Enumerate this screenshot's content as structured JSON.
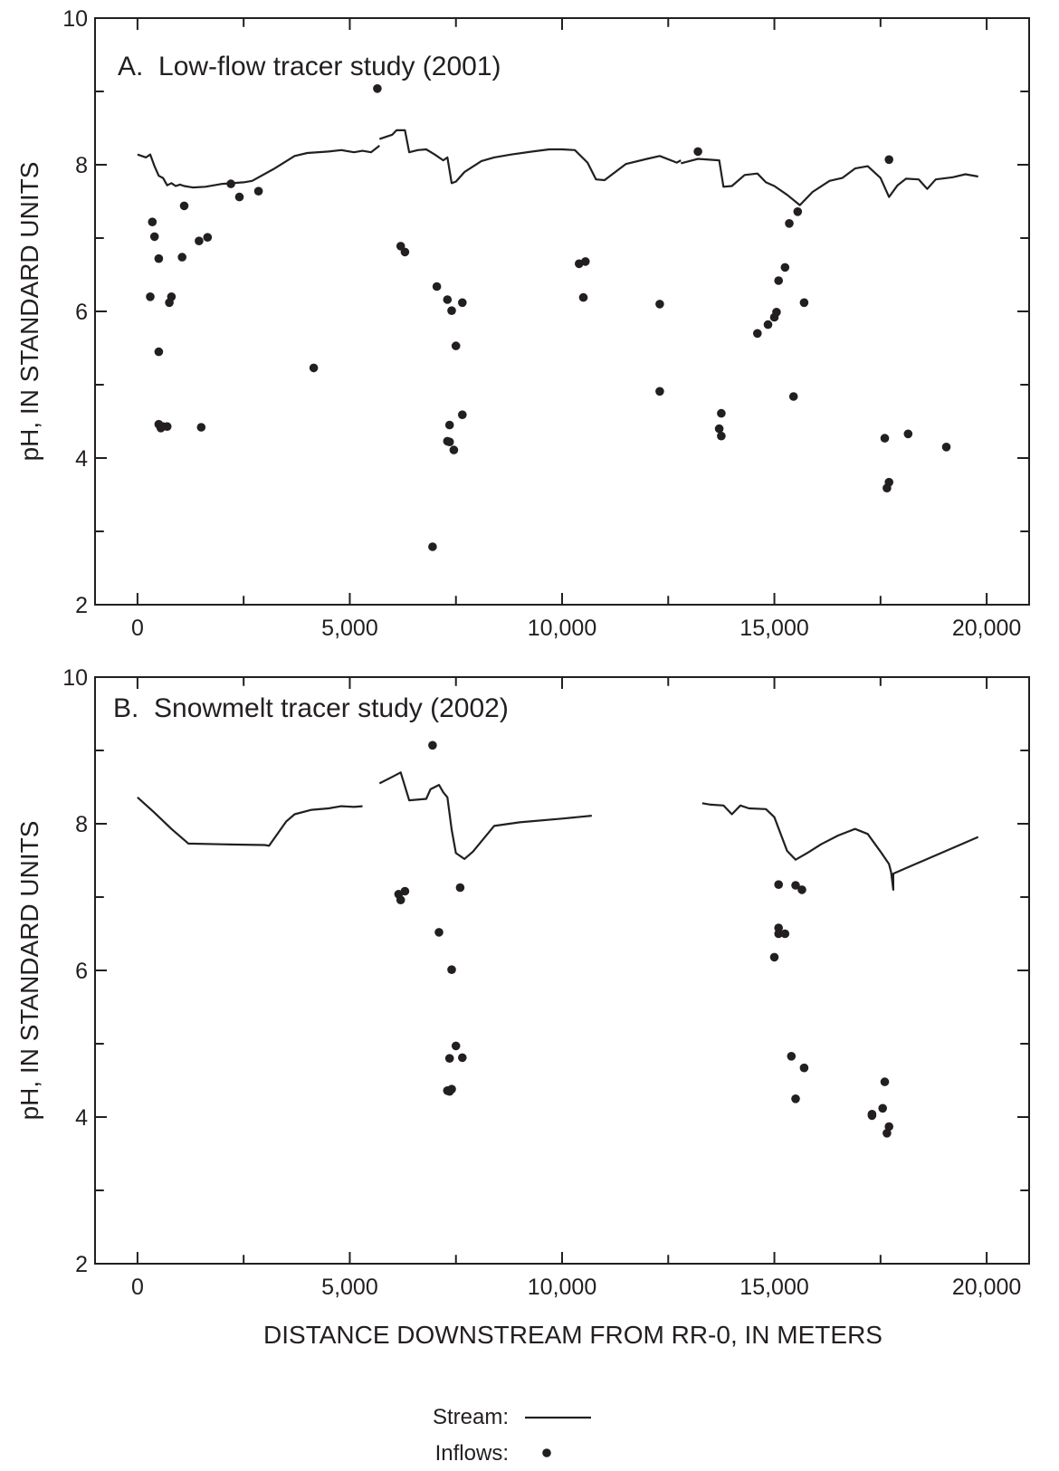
{
  "figure": {
    "xlabel": "DISTANCE DOWNSTREAM FROM RR-0, IN METERS",
    "legend": {
      "placement": "bottom-center",
      "stream_label": "Stream:",
      "inflows_label": "Inflows:"
    }
  },
  "chart_data": [
    {
      "type": "scatter",
      "title": "A.  Low-flow tracer study (2001)",
      "ylabel": "pH, IN STANDARD UNITS",
      "xlim": [
        -1000,
        21000
      ],
      "ylim": [
        2,
        10
      ],
      "x_ticks": [
        0,
        5000,
        10000,
        15000,
        20000
      ],
      "x_tick_labels": [
        "0",
        "5,000",
        "10,000",
        "15,000",
        "20,000"
      ],
      "y_ticks": [
        2,
        4,
        6,
        8,
        10
      ],
      "y_tick_labels": [
        "2",
        "4",
        "6",
        "8",
        "10"
      ],
      "grid": false,
      "series": [
        {
          "kind": "line",
          "segments": [
            [
              [
                0,
                8.14
              ],
              [
                200,
                8.1
              ],
              [
                300,
                8.14
              ],
              [
                400,
                7.98
              ],
              [
                500,
                7.85
              ],
              [
                600,
                7.82
              ],
              [
                700,
                7.72
              ],
              [
                800,
                7.75
              ],
              [
                900,
                7.71
              ],
              [
                1000,
                7.73
              ],
              [
                1100,
                7.71
              ],
              [
                1300,
                7.69
              ],
              [
                1600,
                7.7
              ],
              [
                2000,
                7.74
              ],
              [
                2500,
                7.76
              ],
              [
                2700,
                7.78
              ],
              [
                3200,
                7.94
              ],
              [
                3700,
                8.12
              ],
              [
                4000,
                8.16
              ],
              [
                4500,
                8.18
              ],
              [
                4800,
                8.2
              ],
              [
                5100,
                8.17
              ],
              [
                5300,
                8.19
              ],
              [
                5500,
                8.17
              ],
              [
                5700,
                8.26
              ]
            ],
            [
              [
                5700,
                8.35
              ],
              [
                6000,
                8.41
              ],
              [
                6100,
                8.47
              ],
              [
                6300,
                8.47
              ],
              [
                6400,
                8.17
              ],
              [
                6600,
                8.2
              ],
              [
                6800,
                8.21
              ],
              [
                7000,
                8.14
              ],
              [
                7200,
                8.06
              ],
              [
                7300,
                8.1
              ],
              [
                7400,
                7.75
              ],
              [
                7500,
                7.77
              ],
              [
                7700,
                7.9
              ],
              [
                8100,
                8.05
              ],
              [
                8400,
                8.1
              ],
              [
                8800,
                8.14
              ],
              [
                9300,
                8.18
              ],
              [
                9700,
                8.21
              ],
              [
                10000,
                8.21
              ],
              [
                10300,
                8.2
              ],
              [
                10600,
                8.03
              ],
              [
                10800,
                7.8
              ],
              [
                11000,
                7.79
              ],
              [
                11500,
                8.01
              ],
              [
                12000,
                8.08
              ],
              [
                12300,
                8.12
              ],
              [
                12700,
                8.03
              ],
              [
                12800,
                8.06
              ]
            ],
            [
              [
                12800,
                8.02
              ],
              [
                13200,
                8.08
              ],
              [
                13700,
                8.06
              ],
              [
                13800,
                7.7
              ],
              [
                14000,
                7.71
              ],
              [
                14300,
                7.86
              ],
              [
                14600,
                7.88
              ],
              [
                14800,
                7.76
              ],
              [
                15000,
                7.71
              ],
              [
                15300,
                7.59
              ],
              [
                15600,
                7.45
              ],
              [
                15900,
                7.63
              ],
              [
                16300,
                7.78
              ],
              [
                16600,
                7.82
              ],
              [
                16900,
                7.95
              ],
              [
                17200,
                7.98
              ],
              [
                17500,
                7.82
              ],
              [
                17700,
                7.56
              ],
              [
                17900,
                7.72
              ],
              [
                18100,
                7.81
              ],
              [
                18400,
                7.8
              ],
              [
                18600,
                7.67
              ],
              [
                18800,
                7.8
              ],
              [
                19200,
                7.83
              ],
              [
                19500,
                7.87
              ],
              [
                19800,
                7.84
              ]
            ]
          ]
        },
        {
          "kind": "scatter",
          "points": [
            [
              350,
              7.22
            ],
            [
              400,
              7.02
            ],
            [
              300,
              6.2
            ],
            [
              500,
              6.72
            ],
            [
              500,
              5.45
            ],
            [
              500,
              4.46
            ],
            [
              550,
              4.41
            ],
            [
              600,
              4.43
            ],
            [
              700,
              4.43
            ],
            [
              750,
              6.12
            ],
            [
              800,
              6.2
            ],
            [
              1100,
              7.44
            ],
            [
              1050,
              6.74
            ],
            [
              1450,
              6.96
            ],
            [
              1650,
              7.01
            ],
            [
              1500,
              4.42
            ],
            [
              2200,
              7.74
            ],
            [
              2400,
              7.56
            ],
            [
              2850,
              7.64
            ],
            [
              4150,
              5.23
            ],
            [
              5650,
              9.04
            ],
            [
              6200,
              6.89
            ],
            [
              6300,
              6.81
            ],
            [
              6950,
              2.79
            ],
            [
              7050,
              6.34
            ],
            [
              7300,
              6.16
            ],
            [
              7400,
              6.01
            ],
            [
              7500,
              5.53
            ],
            [
              7650,
              6.12
            ],
            [
              7650,
              4.59
            ],
            [
              7350,
              4.45
            ],
            [
              7300,
              4.23
            ],
            [
              7350,
              4.22
            ],
            [
              7450,
              4.11
            ],
            [
              10400,
              6.65
            ],
            [
              10550,
              6.68
            ],
            [
              10500,
              6.19
            ],
            [
              12300,
              6.1
            ],
            [
              12300,
              4.91
            ],
            [
              13200,
              8.18
            ],
            [
              13700,
              4.4
            ],
            [
              13750,
              4.61
            ],
            [
              13750,
              4.3
            ],
            [
              14600,
              5.7
            ],
            [
              14850,
              5.82
            ],
            [
              15000,
              5.92
            ],
            [
              15050,
              5.99
            ],
            [
              15100,
              6.42
            ],
            [
              15250,
              6.6
            ],
            [
              15350,
              7.2
            ],
            [
              15550,
              7.36
            ],
            [
              15700,
              6.12
            ],
            [
              15450,
              4.84
            ],
            [
              17700,
              8.07
            ],
            [
              17600,
              4.27
            ],
            [
              17650,
              3.59
            ],
            [
              17700,
              3.67
            ],
            [
              18150,
              4.33
            ],
            [
              19050,
              4.15
            ]
          ]
        }
      ]
    },
    {
      "type": "scatter",
      "title": "B.  Snowmelt tracer study (2002)",
      "ylabel": "pH, IN STANDARD UNITS",
      "xlim": [
        -1000,
        21000
      ],
      "ylim": [
        2,
        10
      ],
      "x_ticks": [
        0,
        5000,
        10000,
        15000,
        20000
      ],
      "x_tick_labels": [
        "0",
        "5,000",
        "10,000",
        "15,000",
        "20,000"
      ],
      "y_ticks": [
        2,
        4,
        6,
        8,
        10
      ],
      "y_tick_labels": [
        "2",
        "4",
        "6",
        "8",
        "10"
      ],
      "grid": false,
      "series": [
        {
          "kind": "line",
          "segments": [
            [
              [
                0,
                8.36
              ],
              [
                400,
                8.15
              ],
              [
                800,
                7.93
              ],
              [
                1200,
                7.73
              ],
              [
                2000,
                7.72
              ],
              [
                3000,
                7.71
              ],
              [
                3100,
                7.7
              ],
              [
                3500,
                8.03
              ],
              [
                3700,
                8.13
              ],
              [
                4100,
                8.19
              ],
              [
                4500,
                8.21
              ],
              [
                4800,
                8.24
              ],
              [
                5100,
                8.23
              ],
              [
                5300,
                8.24
              ]
            ],
            [
              [
                5700,
                8.55
              ],
              [
                6000,
                8.64
              ],
              [
                6200,
                8.7
              ],
              [
                6400,
                8.32
              ],
              [
                6800,
                8.34
              ],
              [
                6900,
                8.47
              ],
              [
                7100,
                8.53
              ],
              [
                7200,
                8.43
              ],
              [
                7300,
                8.36
              ],
              [
                7400,
                7.92
              ],
              [
                7500,
                7.6
              ],
              [
                7700,
                7.52
              ],
              [
                7900,
                7.62
              ],
              [
                8400,
                7.97
              ],
              [
                9000,
                8.02
              ],
              [
                10000,
                8.07
              ],
              [
                10700,
                8.11
              ]
            ],
            [
              [
                13300,
                8.28
              ],
              [
                13500,
                8.26
              ],
              [
                13800,
                8.25
              ],
              [
                14000,
                8.13
              ],
              [
                14200,
                8.25
              ],
              [
                14400,
                8.21
              ],
              [
                14800,
                8.2
              ],
              [
                15000,
                8.09
              ],
              [
                15300,
                7.63
              ],
              [
                15500,
                7.51
              ],
              [
                15800,
                7.61
              ],
              [
                16100,
                7.72
              ],
              [
                16500,
                7.84
              ],
              [
                16900,
                7.93
              ],
              [
                17200,
                7.86
              ],
              [
                17500,
                7.62
              ],
              [
                17700,
                7.45
              ],
              [
                17750,
                7.34
              ],
              [
                17800,
                7.1
              ],
              [
                17800,
                7.32
              ],
              [
                19800,
                7.82
              ]
            ]
          ]
        },
        {
          "kind": "scatter",
          "points": [
            [
              6300,
              7.08
            ],
            [
              6150,
              7.04
            ],
            [
              6200,
              6.96
            ],
            [
              6950,
              9.07
            ],
            [
              7100,
              6.52
            ],
            [
              7400,
              6.01
            ],
            [
              7500,
              4.97
            ],
            [
              7350,
              4.8
            ],
            [
              7650,
              4.81
            ],
            [
              7300,
              4.36
            ],
            [
              7350,
              4.35
            ],
            [
              7400,
              4.38
            ],
            [
              7600,
              7.13
            ],
            [
              15100,
              7.17
            ],
            [
              15500,
              7.16
            ],
            [
              15650,
              7.1
            ],
            [
              15000,
              6.18
            ],
            [
              15100,
              6.5
            ],
            [
              15100,
              6.58
            ],
            [
              15250,
              6.5
            ],
            [
              15400,
              4.83
            ],
            [
              15700,
              4.67
            ],
            [
              15500,
              4.25
            ],
            [
              17300,
              4.04
            ],
            [
              17300,
              4.02
            ],
            [
              17600,
              4.48
            ],
            [
              17550,
              4.12
            ],
            [
              17650,
              3.78
            ],
            [
              17700,
              3.87
            ]
          ]
        }
      ]
    }
  ]
}
